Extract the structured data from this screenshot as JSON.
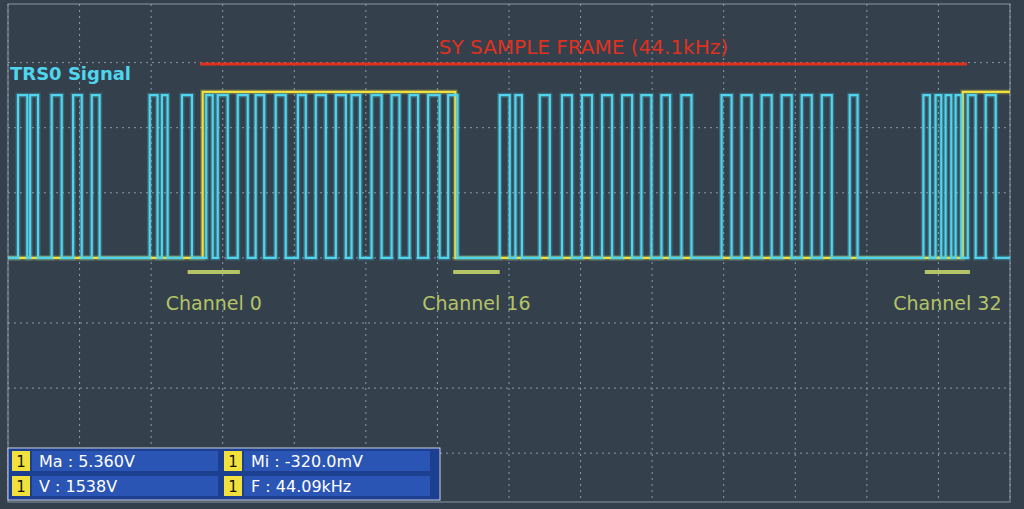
{
  "chart_data": {
    "type": "line",
    "line_style": "step",
    "grid": true,
    "tick_labels": false,
    "xlim": [
      0,
      14
    ],
    "xticks": [
      0,
      1,
      2,
      3,
      4,
      5,
      6,
      7,
      8,
      9,
      10,
      11,
      12,
      13,
      14
    ],
    "ylim": [
      -7.5,
      7.8
    ],
    "yticks": [
      -6,
      -4,
      -2,
      0,
      2,
      4,
      6
    ],
    "series": [
      {
        "name": "TRS0 Signal",
        "color": "#4fd6ee",
        "x": [
          0,
          0.14,
          0.27,
          0.31,
          0.42,
          0.61,
          0.75,
          0.91,
          1.03,
          1.17,
          1.28,
          1.98,
          2.09,
          2.15,
          2.23,
          2.43,
          2.57,
          2.77,
          2.86,
          2.93,
          3.07,
          3.21,
          3.35,
          3.46,
          3.58,
          3.74,
          3.88,
          4.05,
          4.16,
          4.3,
          4.44,
          4.58,
          4.72,
          4.8,
          4.92,
          5.08,
          5.22,
          5.36,
          5.47,
          5.61,
          5.73,
          5.87,
          6.03,
          6.15,
          6.28,
          6.87,
          7.01,
          7.09,
          7.18,
          7.43,
          7.57,
          7.74,
          7.88,
          8.02,
          8.16,
          8.3,
          8.44,
          8.58,
          8.72,
          8.85,
          8.99,
          9.13,
          9.25,
          9.41,
          9.55,
          9.97,
          10.11,
          10.25,
          10.39,
          10.53,
          10.67,
          10.81,
          10.95,
          11.09,
          11.23,
          11.37,
          11.51,
          11.76,
          11.87,
          12.79,
          12.88,
          12.96,
          13.04,
          13.1,
          13.18,
          13.24,
          13.32,
          13.41,
          13.52,
          13.66,
          13.8,
          14
        ],
        "values": [
          0,
          5,
          0,
          5,
          0,
          5,
          0,
          5,
          0,
          5,
          0,
          5,
          0,
          5,
          0,
          5,
          0,
          5,
          0,
          5,
          0,
          5,
          0,
          5,
          0,
          5,
          0,
          5,
          0,
          5,
          0,
          5,
          0,
          5,
          0,
          5,
          0,
          5,
          0,
          5,
          0,
          5,
          0,
          5,
          0,
          5,
          0,
          5,
          0,
          5,
          0,
          5,
          0,
          5,
          0,
          5,
          0,
          5,
          0,
          5,
          0,
          5,
          0,
          5,
          0,
          5,
          0,
          5,
          0,
          5,
          0,
          5,
          0,
          5,
          0,
          5,
          0,
          5,
          0,
          5,
          0,
          5,
          0,
          5,
          0,
          5,
          0,
          5,
          0,
          5,
          0,
          0
        ]
      },
      {
        "name": "SY",
        "color": "#f2e13c",
        "x": [
          0,
          2.72,
          6.25,
          13.34,
          14
        ],
        "values": [
          0,
          5.1,
          0,
          5.1,
          5.1
        ]
      }
    ],
    "annotations": [
      {
        "text": "TRS0 Signal",
        "color": "#4fd6ee"
      },
      {
        "text": "SY SAMPLE FRAME (44.1kHz)",
        "color": "#e0301e",
        "x": [
          2.68,
          13.4
        ]
      },
      {
        "text": "Channel 0",
        "color": "#b4c466",
        "x": [
          2.51,
          3.24
        ]
      },
      {
        "text": "Channel 16",
        "color": "#b4c466",
        "x": [
          6.22,
          6.87
        ]
      },
      {
        "text": "Channel 32",
        "color": "#b4c466",
        "x": [
          12.81,
          13.44
        ]
      }
    ],
    "measurements": [
      {
        "channel": "1",
        "text": "Ma : 5.360V"
      },
      {
        "channel": "1",
        "text": "Mi : -320.0mV"
      },
      {
        "channel": "1",
        "text": "V : 1538V"
      },
      {
        "channel": "1",
        "text": "F : 44.09kHz"
      }
    ]
  }
}
